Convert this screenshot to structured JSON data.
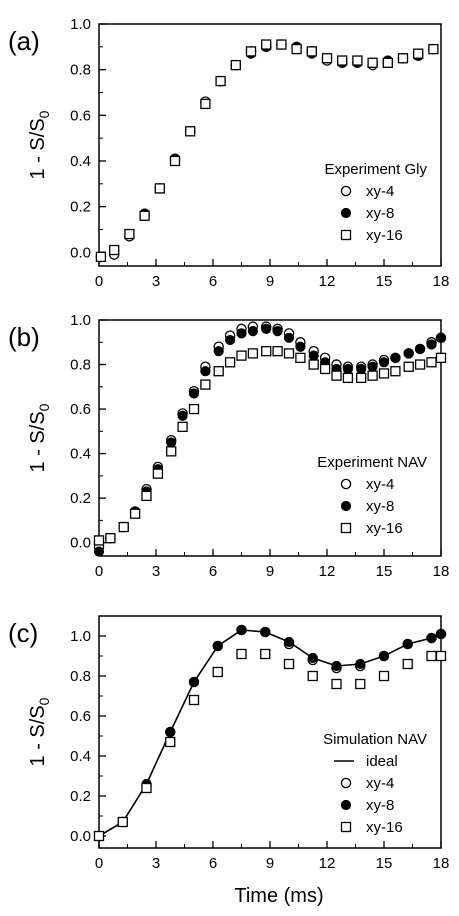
{
  "figure": {
    "xlabel": "Time (ms)"
  },
  "chart_data": [
    {
      "type": "scatter",
      "panel_label": "(a)",
      "ylabel": "1 - S/S",
      "ylabel_sub": "0",
      "xlim": [
        0,
        18
      ],
      "ylim": [
        -0.06,
        1.0
      ],
      "x_ticks": [
        0,
        3,
        6,
        9,
        12,
        15,
        18
      ],
      "y_ticks": [
        0.0,
        0.2,
        0.4,
        0.6,
        0.8,
        1.0
      ],
      "legend": {
        "title": "Experiment Gly",
        "position": "lower-right",
        "entries": [
          "xy-4",
          "xy-8",
          "xy-16"
        ]
      },
      "series": [
        {
          "name": "xy-4",
          "marker": "open-circle",
          "x": [
            0.1,
            0.8,
            1.6,
            2.4,
            3.2,
            4.0,
            4.8,
            5.6,
            6.4,
            7.2,
            8.0,
            8.8,
            9.6,
            10.4,
            11.2,
            12.0,
            12.8,
            13.6,
            14.4,
            15.2,
            16.0,
            16.8,
            17.6
          ],
          "values": [
            -0.02,
            -0.01,
            0.07,
            0.16,
            0.28,
            0.41,
            0.53,
            0.66,
            0.75,
            0.82,
            0.88,
            0.9,
            0.91,
            0.9,
            0.88,
            0.84,
            0.83,
            0.83,
            0.82,
            0.83,
            0.85,
            0.87,
            0.89
          ]
        },
        {
          "name": "xy-8",
          "marker": "filled-circle",
          "x": [
            0.1,
            0.8,
            1.6,
            2.4,
            3.2,
            4.0,
            4.8,
            5.6,
            6.4,
            7.2,
            8.0,
            8.8,
            9.6,
            10.4,
            11.2,
            12.0,
            12.8,
            13.6,
            14.4,
            15.2,
            16.0,
            16.8,
            17.6
          ],
          "values": [
            -0.02,
            0.01,
            0.08,
            0.17,
            0.28,
            0.41,
            0.53,
            0.65,
            0.75,
            0.82,
            0.87,
            0.9,
            0.91,
            0.9,
            0.87,
            0.85,
            0.83,
            0.83,
            0.83,
            0.84,
            0.85,
            0.86,
            0.89
          ]
        },
        {
          "name": "xy-16",
          "marker": "open-square",
          "x": [
            0.1,
            0.8,
            1.6,
            2.4,
            3.2,
            4.0,
            4.8,
            5.6,
            6.4,
            7.2,
            8.0,
            8.8,
            9.6,
            10.4,
            11.2,
            12.0,
            12.8,
            13.6,
            14.4,
            15.2,
            16.0,
            16.8,
            17.6
          ],
          "values": [
            -0.02,
            0.01,
            0.08,
            0.16,
            0.28,
            0.4,
            0.53,
            0.65,
            0.75,
            0.82,
            0.88,
            0.91,
            0.91,
            0.89,
            0.88,
            0.85,
            0.84,
            0.84,
            0.83,
            0.83,
            0.85,
            0.87,
            0.89
          ]
        }
      ]
    },
    {
      "type": "scatter",
      "panel_label": "(b)",
      "ylabel": "1 - S/S",
      "ylabel_sub": "0",
      "xlim": [
        0,
        18
      ],
      "ylim": [
        -0.06,
        1.0
      ],
      "x_ticks": [
        0,
        3,
        6,
        9,
        12,
        15,
        18
      ],
      "y_ticks": [
        0.0,
        0.2,
        0.4,
        0.6,
        0.8,
        1.0
      ],
      "legend": {
        "title": "Experiment NAV",
        "position": "lower-right",
        "entries": [
          "xy-4",
          "xy-8",
          "xy-16"
        ]
      },
      "series": [
        {
          "name": "xy-4",
          "marker": "open-circle",
          "x": [
            0.0,
            0.6,
            1.3,
            1.9,
            2.5,
            3.1,
            3.8,
            4.4,
            5.0,
            5.6,
            6.3,
            6.9,
            7.5,
            8.1,
            8.8,
            9.4,
            10.0,
            10.6,
            11.3,
            11.9,
            12.5,
            13.1,
            13.8,
            14.4,
            15.0,
            15.6,
            16.3,
            16.9,
            17.5,
            18.0
          ],
          "values": [
            -0.02,
            0.02,
            0.07,
            0.14,
            0.24,
            0.34,
            0.46,
            0.58,
            0.68,
            0.79,
            0.88,
            0.93,
            0.96,
            0.97,
            0.97,
            0.96,
            0.94,
            0.9,
            0.86,
            0.83,
            0.8,
            0.79,
            0.79,
            0.8,
            0.82,
            0.83,
            0.85,
            0.87,
            0.9,
            0.92
          ]
        },
        {
          "name": "xy-8",
          "marker": "filled-circle",
          "x": [
            0.0,
            0.6,
            1.3,
            1.9,
            2.5,
            3.1,
            3.8,
            4.4,
            5.0,
            5.6,
            6.3,
            6.9,
            7.5,
            8.1,
            8.8,
            9.4,
            10.0,
            10.6,
            11.3,
            11.9,
            12.5,
            13.1,
            13.8,
            14.4,
            15.0,
            15.6,
            16.3,
            16.9,
            17.5,
            18.0
          ],
          "values": [
            -0.04,
            0.02,
            0.07,
            0.14,
            0.23,
            0.33,
            0.45,
            0.57,
            0.67,
            0.77,
            0.86,
            0.91,
            0.94,
            0.95,
            0.96,
            0.95,
            0.92,
            0.88,
            0.84,
            0.81,
            0.78,
            0.78,
            0.78,
            0.79,
            0.81,
            0.83,
            0.85,
            0.87,
            0.89,
            0.92
          ]
        },
        {
          "name": "xy-16",
          "marker": "open-square",
          "x": [
            0.0,
            0.6,
            1.3,
            1.9,
            2.5,
            3.1,
            3.8,
            4.4,
            5.0,
            5.6,
            6.3,
            6.9,
            7.5,
            8.1,
            8.8,
            9.4,
            10.0,
            10.6,
            11.3,
            11.9,
            12.5,
            13.1,
            13.8,
            14.4,
            15.0,
            15.6,
            16.3,
            16.9,
            17.5,
            18.0
          ],
          "values": [
            0.01,
            0.02,
            0.07,
            0.13,
            0.21,
            0.31,
            0.41,
            0.52,
            0.6,
            0.71,
            0.77,
            0.81,
            0.84,
            0.85,
            0.86,
            0.86,
            0.85,
            0.83,
            0.8,
            0.78,
            0.75,
            0.74,
            0.74,
            0.75,
            0.76,
            0.77,
            0.79,
            0.8,
            0.81,
            0.83
          ]
        }
      ]
    },
    {
      "type": "scatter",
      "panel_label": "(c)",
      "ylabel": "1 - S/S",
      "ylabel_sub": "0",
      "xlim": [
        0,
        18
      ],
      "ylim": [
        -0.06,
        1.1
      ],
      "x_ticks": [
        0,
        3,
        6,
        9,
        12,
        15,
        18
      ],
      "y_ticks": [
        0.0,
        0.2,
        0.4,
        0.6,
        0.8,
        1.0
      ],
      "legend": {
        "title": "Simulation NAV",
        "position": "lower-right",
        "entries": [
          "ideal",
          "xy-4",
          "xy-8",
          "xy-16"
        ]
      },
      "series": [
        {
          "name": "ideal",
          "marker": "line",
          "x": [
            0.0,
            1.25,
            2.5,
            3.75,
            5.0,
            6.25,
            7.5,
            8.75,
            10.0,
            11.25,
            12.5,
            13.75,
            15.0,
            16.25,
            17.5,
            18.0
          ],
          "values": [
            0.0,
            0.07,
            0.26,
            0.52,
            0.77,
            0.95,
            1.03,
            1.02,
            0.97,
            0.89,
            0.85,
            0.86,
            0.9,
            0.96,
            0.99,
            1.01
          ]
        },
        {
          "name": "xy-4",
          "marker": "open-circle",
          "x": [
            0.0,
            1.25,
            2.5,
            3.75,
            5.0,
            6.25,
            7.5,
            8.75,
            10.0,
            11.25,
            12.5,
            13.75,
            15.0,
            16.25,
            17.5,
            18.0
          ],
          "values": [
            0.0,
            0.07,
            0.25,
            0.52,
            0.77,
            0.95,
            1.03,
            1.02,
            0.96,
            0.88,
            0.84,
            0.85,
            0.9,
            0.96,
            0.99,
            1.01
          ]
        },
        {
          "name": "xy-8",
          "marker": "filled-circle",
          "x": [
            0.0,
            1.25,
            2.5,
            3.75,
            5.0,
            6.25,
            7.5,
            8.75,
            10.0,
            11.25,
            12.5,
            13.75,
            15.0,
            16.25,
            17.5,
            18.0
          ],
          "values": [
            0.0,
            0.07,
            0.26,
            0.52,
            0.77,
            0.95,
            1.03,
            1.02,
            0.97,
            0.89,
            0.85,
            0.86,
            0.9,
            0.96,
            0.99,
            1.01
          ]
        },
        {
          "name": "xy-16",
          "marker": "open-square",
          "x": [
            0.0,
            1.25,
            2.5,
            3.75,
            5.0,
            6.25,
            7.5,
            8.75,
            10.0,
            11.25,
            12.5,
            13.75,
            15.0,
            16.25,
            17.5,
            18.0
          ],
          "values": [
            0.0,
            0.07,
            0.24,
            0.47,
            0.68,
            0.82,
            0.91,
            0.91,
            0.86,
            0.8,
            0.76,
            0.76,
            0.8,
            0.86,
            0.9,
            0.9
          ]
        }
      ]
    }
  ]
}
